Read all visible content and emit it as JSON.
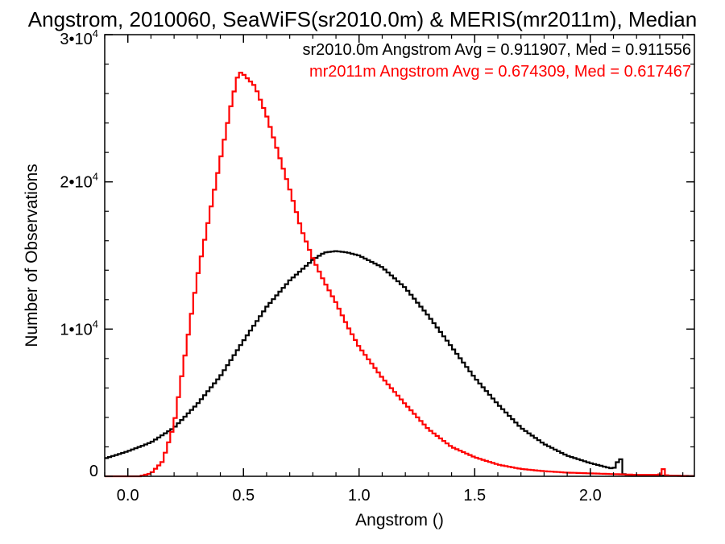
{
  "chart_data": {
    "type": "line",
    "title": "Angstrom, 2010060, SeaWiFS(sr2010.0m) & MERIS(mr2011m), Median",
    "xlabel": "Angstrom ()",
    "ylabel": "Number of Observations",
    "xlim": [
      -0.1,
      2.45
    ],
    "ylim": [
      0,
      30000
    ],
    "grid": false,
    "x_ticks": [
      {
        "value": 0.0,
        "label": "0.0"
      },
      {
        "value": 0.5,
        "label": "0.5"
      },
      {
        "value": 1.0,
        "label": "1.0"
      },
      {
        "value": 1.5,
        "label": "1.5"
      },
      {
        "value": 2.0,
        "label": "2.0"
      }
    ],
    "y_ticks": [
      {
        "value": 0,
        "base": "0",
        "exp": ""
      },
      {
        "value": 10000,
        "base": "1•10",
        "exp": "4"
      },
      {
        "value": 20000,
        "base": "2•10",
        "exp": "4"
      },
      {
        "value": 30000,
        "base": "3•10",
        "exp": "4"
      }
    ],
    "annotations": [
      {
        "text": "sr2010.0m Angstrom Avg = 0.911907, Med = 0.911556",
        "color": "#000000"
      },
      {
        "text": "mr2011m Angstrom Avg = 0.674309, Med = 0.617467",
        "color": "#ff0000"
      }
    ],
    "series": [
      {
        "color": "#000000",
        "x": [
          -0.1,
          0.0,
          0.1,
          0.2,
          0.3,
          0.4,
          0.5,
          0.6,
          0.7,
          0.8,
          0.85,
          0.9,
          0.95,
          1.0,
          1.1,
          1.2,
          1.3,
          1.4,
          1.5,
          1.6,
          1.7,
          1.8,
          1.9,
          2.0,
          2.05,
          2.1,
          2.13,
          2.14,
          2.15,
          2.2,
          2.3,
          2.45
        ],
        "values": [
          1200,
          1700,
          2300,
          3300,
          4900,
          6800,
          9200,
          11500,
          13300,
          14700,
          15200,
          15300,
          15200,
          15000,
          14200,
          12800,
          10900,
          8800,
          6700,
          4900,
          3300,
          2200,
          1400,
          900,
          700,
          500,
          1300,
          200,
          100,
          80,
          50,
          20
        ]
      },
      {
        "color": "#ff0000",
        "x": [
          -0.1,
          0.05,
          0.1,
          0.15,
          0.2,
          0.25,
          0.3,
          0.35,
          0.4,
          0.45,
          0.48,
          0.5,
          0.55,
          0.6,
          0.65,
          0.7,
          0.75,
          0.8,
          0.85,
          0.9,
          0.95,
          1.0,
          1.1,
          1.2,
          1.3,
          1.4,
          1.5,
          1.6,
          1.7,
          1.8,
          1.9,
          2.0,
          2.1,
          2.2,
          2.3,
          2.32,
          2.33,
          2.45
        ],
        "values": [
          0,
          0,
          200,
          1000,
          3500,
          8500,
          13500,
          17500,
          21500,
          25500,
          27500,
          27300,
          26500,
          24500,
          22000,
          19500,
          16800,
          14800,
          13200,
          11800,
          10200,
          8800,
          6700,
          4900,
          3200,
          2000,
          1300,
          800,
          500,
          350,
          250,
          200,
          150,
          100,
          100,
          600,
          50,
          0
        ]
      }
    ]
  }
}
